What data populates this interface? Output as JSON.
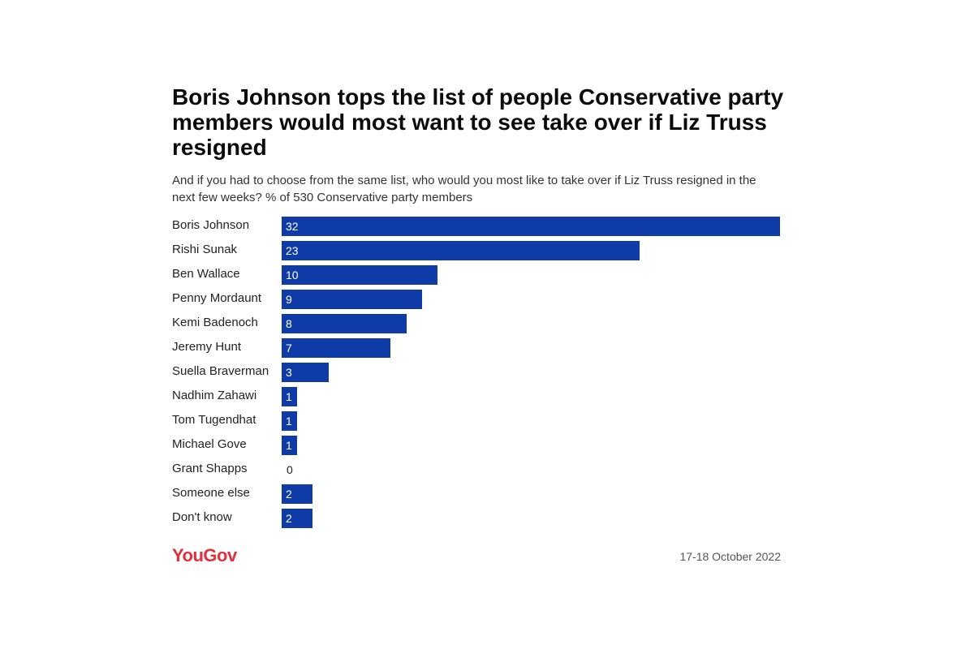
{
  "header": {
    "title": "Boris Johnson tops the list of people Conservative party members would most want to see take over if Liz Truss resigned",
    "subtitle": "And if you had to choose from the same list, who would you most like to take over if Liz Truss resigned in the next few weeks? % of 530 Conservative party members"
  },
  "footer": {
    "brand": "YouGov",
    "date": "17-18 October 2022"
  },
  "colors": {
    "bar": "#0e3ba8",
    "brand": "#e0313c"
  },
  "chart_data": {
    "type": "bar",
    "orientation": "horizontal",
    "categories": [
      "Boris Johnson",
      "Rishi Sunak",
      "Ben Wallace",
      "Penny Mordaunt",
      "Kemi Badenoch",
      "Jeremy Hunt",
      "Suella Braverman",
      "Nadhim Zahawi",
      "Tom Tugendhat",
      "Michael Gove",
      "Grant Shapps",
      "Someone else",
      "Don't know"
    ],
    "values": [
      32,
      23,
      10,
      9,
      8,
      7,
      3,
      1,
      1,
      1,
      0,
      2,
      2
    ],
    "xlim": [
      0,
      32
    ],
    "grid": false,
    "data_labels": true
  }
}
